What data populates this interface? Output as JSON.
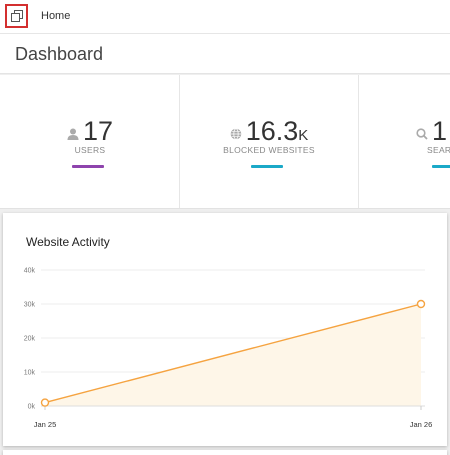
{
  "breadcrumb": {
    "home_label": "Home"
  },
  "page": {
    "title": "Dashboard"
  },
  "stats": [
    {
      "value": "17",
      "suffix": "",
      "label": "USERS",
      "icon": "user-icon",
      "accent": "#8e44ad"
    },
    {
      "value": "16.3",
      "suffix": "K",
      "label": "BLOCKED WEBSITES",
      "icon": "globe-icon",
      "accent": "#1ba9c8"
    },
    {
      "value": "1",
      "suffix": "",
      "label": "SEAR",
      "icon": "search-icon",
      "accent": "#1ba9c8"
    }
  ],
  "chart": {
    "title": "Website Activity",
    "line_color": "#f5a340",
    "fill_color": "#fef6e8"
  },
  "chart_data": {
    "type": "area",
    "title": "Website Activity",
    "categories": [
      "Jan 25",
      "Jan 26"
    ],
    "values": [
      1000,
      30000
    ],
    "yticks": [
      "0k",
      "10k",
      "20k",
      "30k",
      "40k"
    ],
    "ylim": [
      0,
      40000
    ],
    "grid": true,
    "legend": "none"
  }
}
